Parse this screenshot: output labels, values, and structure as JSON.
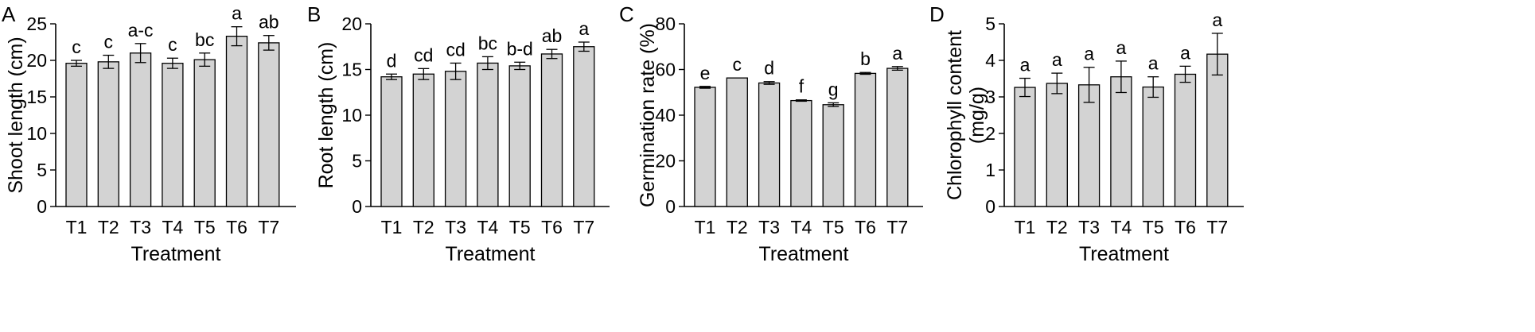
{
  "colors": {
    "bar_fill": "#d3d3d3",
    "bar_stroke": "#000000",
    "axis": "#000000"
  },
  "chart_data": [
    {
      "type": "bar",
      "panel": "A",
      "categories": [
        "T1",
        "T2",
        "T3",
        "T4",
        "T5",
        "T6",
        "T7"
      ],
      "values": [
        19.6,
        19.8,
        21.0,
        19.6,
        20.1,
        23.3,
        22.4
      ],
      "errors": [
        0.4,
        0.9,
        1.3,
        0.7,
        0.9,
        1.3,
        1.0
      ],
      "significance": [
        "c",
        "c",
        "a-c",
        "c",
        "bc",
        "a",
        "ab"
      ],
      "xlabel": "Treatment",
      "ylabel": "Shoot length (cm)",
      "ylim": [
        0,
        25
      ],
      "yticks": [
        0,
        5,
        10,
        15,
        20,
        25
      ],
      "grid": false
    },
    {
      "type": "bar",
      "panel": "B",
      "categories": [
        "T1",
        "T2",
        "T3",
        "T4",
        "T5",
        "T6",
        "T7"
      ],
      "values": [
        14.2,
        14.5,
        14.8,
        15.7,
        15.4,
        16.7,
        17.5
      ],
      "errors": [
        0.3,
        0.6,
        0.9,
        0.7,
        0.4,
        0.5,
        0.5
      ],
      "significance": [
        "d",
        "cd",
        "cd",
        "bc",
        "b-d",
        "ab",
        "a"
      ],
      "xlabel": "Treatment",
      "ylabel": "Root length (cm)",
      "ylim": [
        0,
        20
      ],
      "yticks": [
        0,
        5,
        10,
        15,
        20
      ],
      "grid": false
    },
    {
      "type": "bar",
      "panel": "C",
      "categories": [
        "T1",
        "T2",
        "T3",
        "T4",
        "T5",
        "T6",
        "T7"
      ],
      "values": [
        52.2,
        56.3,
        54.1,
        46.4,
        44.6,
        58.3,
        60.5
      ],
      "errors": [
        0.4,
        0.0,
        0.6,
        0.3,
        0.8,
        0.4,
        0.8
      ],
      "significance": [
        "e",
        "c",
        "d",
        "f",
        "g",
        "b",
        "a"
      ],
      "xlabel": "Treatment",
      "ylabel": "Germination rate (%)",
      "ylim": [
        0,
        80
      ],
      "yticks": [
        0,
        20,
        40,
        60,
        80
      ],
      "grid": false
    },
    {
      "type": "bar",
      "panel": "D",
      "categories": [
        "T1",
        "T2",
        "T3",
        "T4",
        "T5",
        "T6",
        "T7"
      ],
      "values": [
        3.26,
        3.37,
        3.33,
        3.55,
        3.27,
        3.62,
        4.17
      ],
      "errors": [
        0.25,
        0.28,
        0.48,
        0.43,
        0.28,
        0.22,
        0.57
      ],
      "significance": [
        "a",
        "a",
        "a",
        "a",
        "a",
        "a",
        "a"
      ],
      "xlabel": "Treatment",
      "ylabel_lines": [
        "Chlorophyll content",
        "(mg/g)"
      ],
      "ylim": [
        0,
        5
      ],
      "yticks": [
        0,
        1,
        2,
        3,
        4,
        5
      ],
      "grid": false
    }
  ]
}
